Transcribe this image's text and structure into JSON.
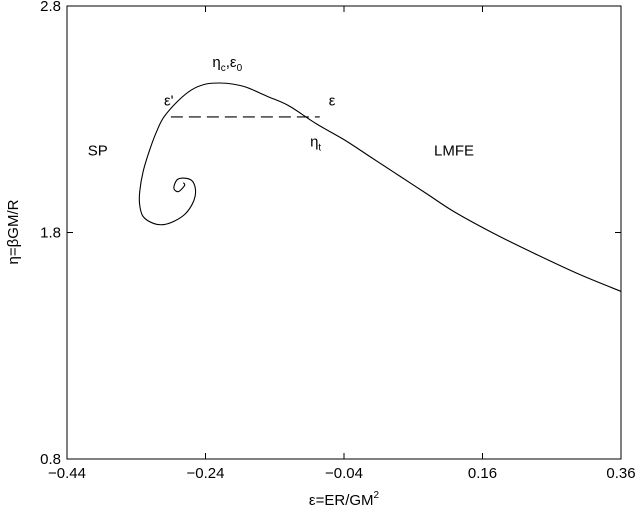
{
  "chart_data": {
    "type": "line",
    "title": "",
    "xlabel": "ε=ER/GM",
    "xlabel_sup": "2",
    "ylabel": "η=βGM/R",
    "xlim": [
      -0.44,
      0.36
    ],
    "ylim": [
      0.8,
      2.8
    ],
    "xticks": [
      "−0.44",
      "−0.24",
      "−0.04",
      "0.16",
      "0.36"
    ],
    "xtick_values": [
      -0.44,
      -0.24,
      -0.04,
      0.16,
      0.36
    ],
    "yticks": [
      "0.8",
      "1.8",
      "2.8"
    ],
    "ytick_values": [
      0.8,
      1.8,
      2.8
    ],
    "grid": false,
    "series": [
      {
        "style": "solid",
        "color": "#000000",
        "x": [
          0.36,
          0.3,
          0.24,
          0.18,
          0.12,
          0.08,
          0.04,
          0.0,
          -0.04,
          -0.08,
          -0.12,
          -0.15,
          -0.18,
          -0.2,
          -0.22,
          -0.24,
          -0.26,
          -0.28,
          -0.3,
          -0.31,
          -0.32,
          -0.33,
          -0.335,
          -0.335,
          -0.33,
          -0.315,
          -0.3,
          -0.285,
          -0.27,
          -0.26,
          -0.255,
          -0.255,
          -0.26,
          -0.27,
          -0.28,
          -0.285,
          -0.285,
          -0.28,
          -0.275,
          -0.27,
          -0.272
        ],
        "y": [
          1.54,
          1.615,
          1.7,
          1.79,
          1.89,
          1.97,
          2.05,
          2.13,
          2.21,
          2.28,
          2.36,
          2.4,
          2.44,
          2.455,
          2.46,
          2.455,
          2.43,
          2.38,
          2.31,
          2.25,
          2.17,
          2.07,
          1.98,
          1.92,
          1.87,
          1.84,
          1.835,
          1.85,
          1.88,
          1.92,
          1.96,
          2.0,
          2.03,
          2.04,
          2.035,
          2.01,
          1.99,
          1.98,
          1.99,
          2.01,
          2.02
        ]
      },
      {
        "style": "dashed",
        "color": "#000000",
        "x": [
          -0.29,
          -0.075
        ],
        "y": [
          2.31,
          2.31
        ]
      }
    ],
    "annotations": [
      {
        "label": "SP",
        "x": -0.41,
        "y": 2.14
      },
      {
        "label": "LMFE",
        "x": 0.09,
        "y": 2.14
      },
      {
        "label": "ε'",
        "x": -0.3,
        "y": 2.36
      },
      {
        "label": "ε",
        "x": -0.062,
        "y": 2.36
      },
      {
        "label": "η",
        "sub": "c",
        "label2": ",ε",
        "sub2": "0",
        "x": -0.23,
        "y": 2.53
      },
      {
        "label": "η",
        "sub": "t",
        "x": -0.089,
        "y": 2.18
      }
    ]
  }
}
